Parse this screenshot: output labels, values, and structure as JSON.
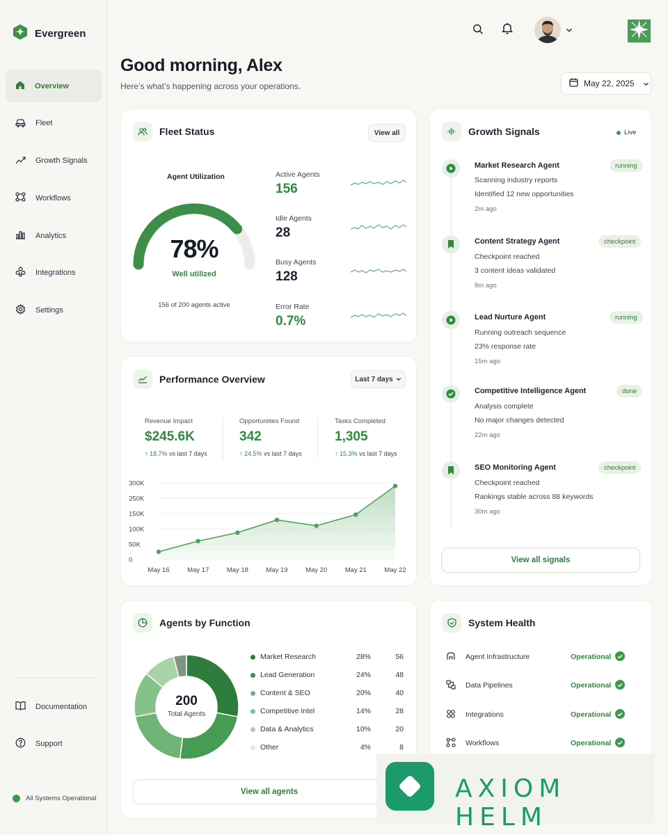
{
  "brand": {
    "name": "Evergreen"
  },
  "nav": {
    "items": [
      {
        "label": "Overview",
        "icon": "home-icon",
        "active": true
      },
      {
        "label": "Fleet",
        "icon": "car-icon"
      },
      {
        "label": "Growth Signals",
        "icon": "trend-icon"
      },
      {
        "label": "Workflows",
        "icon": "workflow-icon"
      },
      {
        "label": "Analytics",
        "icon": "bar-chart-icon"
      },
      {
        "label": "Integrations",
        "icon": "puzzle-icon"
      },
      {
        "label": "Settings",
        "icon": "gear-icon"
      }
    ],
    "bottom": [
      {
        "label": "Documentation",
        "icon": "book-icon"
      },
      {
        "label": "Support",
        "icon": "help-icon"
      }
    ],
    "status": "All Systems Operational"
  },
  "header": {
    "greeting": "Good morning, Alex",
    "subtitle": "Here’s what’s happening across your operations.",
    "date": "May 22, 2025"
  },
  "fleet": {
    "title": "Fleet Status",
    "view_all": "View all",
    "utilization_label": "Agent Utilization",
    "utilization_value": "78%",
    "utilization_fraction": 0.78,
    "utilization_status": "Well utilized",
    "active_caption": "156 of 200 agents active",
    "stats": [
      {
        "label": "Active Agents",
        "value": "156",
        "green": true
      },
      {
        "label": "Idle Agents",
        "value": "28",
        "green": false
      },
      {
        "label": "Busy Agents",
        "value": "128",
        "green": false
      },
      {
        "label": "Error Rate",
        "value": "0.7%",
        "green": true
      }
    ]
  },
  "performance": {
    "title": "Performance Overview",
    "range": "Last 7 days",
    "kpis": [
      {
        "label": "Revenue Impact",
        "value": "$245.6K",
        "delta": "18.7%",
        "delta_text": "vs last 7 days"
      },
      {
        "label": "Opportunities Found",
        "value": "342",
        "delta": "24.5%",
        "delta_text": "vs last 7 days"
      },
      {
        "label": "Tasks Completed",
        "value": "1,305",
        "delta": "15.3%",
        "delta_text": "vs last 7 days"
      }
    ]
  },
  "chart_data": {
    "type": "area",
    "categories": [
      "May 16",
      "May 17",
      "May 18",
      "May 19",
      "May 20",
      "May 21",
      "May 22"
    ],
    "values": [
      30000,
      72000,
      105000,
      155000,
      132000,
      176000,
      288000
    ],
    "y_ticks": [
      "300K",
      "250K",
      "150K",
      "100K",
      "50K",
      "0"
    ],
    "ylim": [
      0,
      300000
    ],
    "grid": true,
    "color": "#4fa05c"
  },
  "signals": {
    "title": "Growth Signals",
    "live": "Live",
    "items": [
      {
        "title": "Market Research Agent",
        "badge": "running",
        "icon": "play-icon",
        "lines": [
          "Scanning industry reports",
          "Identified 12 new opportunities"
        ],
        "time": "2m ago"
      },
      {
        "title": "Content Strategy Agent",
        "badge": "checkpoint",
        "icon": "bookmark-icon",
        "lines": [
          "Checkpoint reached",
          "3 content ideas validated"
        ],
        "time": "8m ago"
      },
      {
        "title": "Lead Nurture Agent",
        "badge": "running",
        "icon": "play-icon",
        "lines": [
          "Running outreach sequence",
          "23% response rate"
        ],
        "time": "15m ago"
      },
      {
        "title": "Competitive Intelligence Agent",
        "badge": "done",
        "icon": "check-badge-icon",
        "lines": [
          "Analysis complete",
          "No major changes detected"
        ],
        "time": "22m ago"
      },
      {
        "title": "SEO Monitoring Agent",
        "badge": "checkpoint",
        "icon": "bookmark-icon",
        "lines": [
          "Checkpoint reached",
          "Rankings stable across 88 keywords"
        ],
        "time": "30m ago"
      }
    ],
    "view_all": "View all signals"
  },
  "agents_by_function": {
    "title": "Agents by Function",
    "total": "200",
    "total_label": "Total Agents",
    "rows": [
      {
        "name": "Market Research",
        "pct": "28%",
        "count": "56",
        "value": 56,
        "color": "#2f7d3c"
      },
      {
        "name": "Lead Generation",
        "pct": "24%",
        "count": "48",
        "value": 48,
        "color": "#3f8f4b"
      },
      {
        "name": "Content & SEO",
        "pct": "20%",
        "count": "40",
        "value": 40,
        "color": "#6fb476"
      },
      {
        "name": "Competitive Intel",
        "pct": "14%",
        "count": "28",
        "value": 28,
        "color": "#86c18a"
      },
      {
        "name": "Data & Analytics",
        "pct": "10%",
        "count": "20",
        "value": 20,
        "color": "#a8d3a9"
      },
      {
        "name": "Other",
        "pct": "4%",
        "count": "8",
        "value": 8,
        "color": "#7f9682"
      }
    ],
    "view_all": "View all agents"
  },
  "health": {
    "title": "System Health",
    "rows": [
      {
        "name": "Agent Infrastructure",
        "status": "Operational",
        "icon": "agent-icon"
      },
      {
        "name": "Data Pipelines",
        "status": "Operational",
        "icon": "pipeline-icon"
      },
      {
        "name": "Integrations",
        "status": "Operational",
        "icon": "puzzle-icon"
      },
      {
        "name": "Workflows",
        "status": "Operational",
        "icon": "workflow-icon"
      }
    ]
  },
  "watermark": {
    "text": "AXIOM HELM"
  }
}
